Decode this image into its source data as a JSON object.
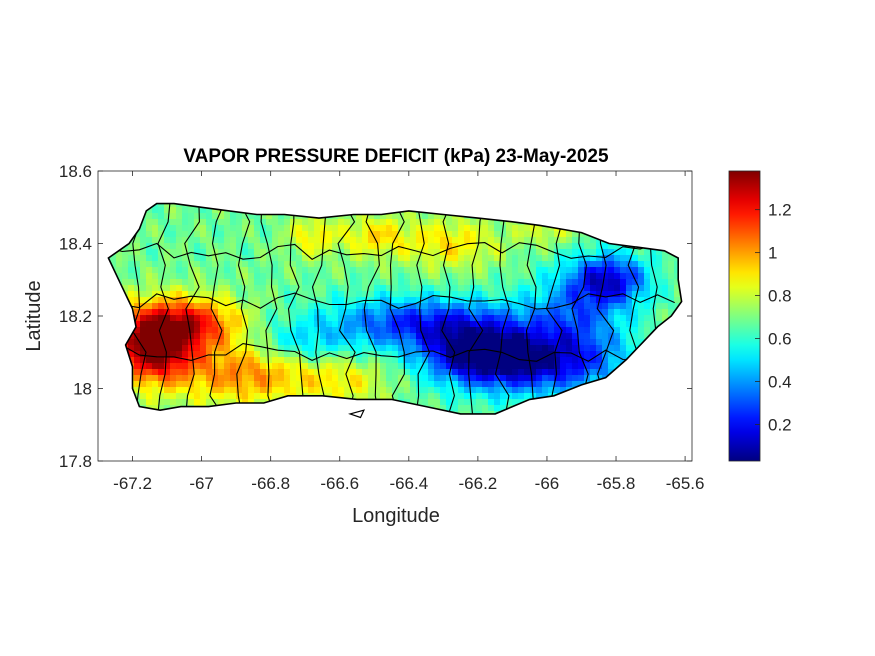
{
  "chart_data": {
    "type": "heatmap",
    "title": "VAPOR PRESSURE DEFICIT (kPa) 23-May-2025",
    "xlabel": "Longitude",
    "ylabel": "Latitude",
    "xlim": [
      -67.3,
      -65.58
    ],
    "ylim": [
      17.8,
      18.6
    ],
    "xticks": [
      -67.2,
      -67,
      -66.8,
      -66.6,
      -66.4,
      -66.2,
      -66,
      -65.8,
      -65.6
    ],
    "xtick_labels": [
      "-67.2",
      "-67",
      "-66.8",
      "-66.6",
      "-66.4",
      "-66.2",
      "-66",
      "-65.8",
      "-65.6"
    ],
    "yticks": [
      17.8,
      18,
      18.2,
      18.4,
      18.6
    ],
    "ytick_labels": [
      "17.8",
      "18",
      "18.2",
      "18.4",
      "18.6"
    ],
    "colorbar": {
      "colormap": "jet",
      "range": [
        0.03,
        1.38
      ],
      "ticks": [
        0.2,
        0.4,
        0.6,
        0.8,
        1,
        1.2
      ],
      "tick_labels": [
        "0.2",
        "0.4",
        "0.6",
        "0.8",
        "1",
        "1.2"
      ]
    },
    "grid": false,
    "outline": [
      [
        -67.27,
        18.36
      ],
      [
        -67.24,
        18.38
      ],
      [
        -67.21,
        18.4
      ],
      [
        -67.18,
        18.44
      ],
      [
        -67.16,
        18.49
      ],
      [
        -67.13,
        18.51
      ],
      [
        -67.08,
        18.51
      ],
      [
        -67.0,
        18.5
      ],
      [
        -66.92,
        18.49
      ],
      [
        -66.84,
        18.48
      ],
      [
        -66.76,
        18.48
      ],
      [
        -66.66,
        18.47
      ],
      [
        -66.56,
        18.48
      ],
      [
        -66.48,
        18.48
      ],
      [
        -66.4,
        18.49
      ],
      [
        -66.3,
        18.48
      ],
      [
        -66.2,
        18.47
      ],
      [
        -66.1,
        18.46
      ],
      [
        -66.02,
        18.45
      ],
      [
        -65.96,
        18.44
      ],
      [
        -65.9,
        18.43
      ],
      [
        -65.82,
        18.4
      ],
      [
        -65.74,
        18.39
      ],
      [
        -65.66,
        18.38
      ],
      [
        -65.62,
        18.36
      ],
      [
        -65.62,
        18.3
      ],
      [
        -65.61,
        18.24
      ],
      [
        -65.64,
        18.2
      ],
      [
        -65.68,
        18.17
      ],
      [
        -65.72,
        18.13
      ],
      [
        -65.77,
        18.08
      ],
      [
        -65.83,
        18.03
      ],
      [
        -65.9,
        18.01
      ],
      [
        -65.98,
        17.98
      ],
      [
        -66.05,
        17.97
      ],
      [
        -66.15,
        17.93
      ],
      [
        -66.25,
        17.93
      ],
      [
        -66.35,
        17.95
      ],
      [
        -66.45,
        17.97
      ],
      [
        -66.55,
        17.97
      ],
      [
        -66.65,
        17.98
      ],
      [
        -66.75,
        17.98
      ],
      [
        -66.82,
        17.96
      ],
      [
        -66.9,
        17.96
      ],
      [
        -66.98,
        17.95
      ],
      [
        -67.06,
        17.95
      ],
      [
        -67.12,
        17.94
      ],
      [
        -67.18,
        17.95
      ],
      [
        -67.2,
        18.0
      ],
      [
        -67.2,
        18.06
      ],
      [
        -67.22,
        18.12
      ],
      [
        -67.19,
        18.17
      ],
      [
        -67.2,
        18.22
      ],
      [
        -67.24,
        18.3
      ],
      [
        -67.27,
        18.36
      ]
    ],
    "islets": [
      [
        [
          -66.57,
          17.93
        ],
        [
          -66.53,
          17.94
        ],
        [
          -66.54,
          17.92
        ]
      ]
    ],
    "field": {
      "background": 0.68,
      "components": [
        {
          "lon": -67.14,
          "lat": 18.12,
          "value": 0.75,
          "sx": 0.08,
          "sy": 0.07
        },
        {
          "lon": -67.02,
          "lat": 18.18,
          "value": 0.45,
          "sx": 0.1,
          "sy": 0.05
        },
        {
          "lon": -66.88,
          "lat": 18.04,
          "value": 0.35,
          "sx": 0.14,
          "sy": 0.06
        },
        {
          "lon": -66.58,
          "lat": 18.02,
          "value": 0.18,
          "sx": 0.1,
          "sy": 0.05
        },
        {
          "lon": -66.68,
          "lat": 18.42,
          "value": 0.2,
          "sx": 0.05,
          "sy": 0.04
        },
        {
          "lon": -66.5,
          "lat": 18.42,
          "value": 0.22,
          "sx": 0.07,
          "sy": 0.04
        },
        {
          "lon": -66.28,
          "lat": 18.4,
          "value": 0.22,
          "sx": 0.1,
          "sy": 0.05
        },
        {
          "lon": -66.0,
          "lat": 18.44,
          "value": 0.15,
          "sx": 0.06,
          "sy": 0.03
        },
        {
          "lon": -66.35,
          "lat": 18.18,
          "value": -0.45,
          "sx": 0.2,
          "sy": 0.05
        },
        {
          "lon": -66.05,
          "lat": 18.07,
          "value": -0.55,
          "sx": 0.18,
          "sy": 0.06
        },
        {
          "lon": -66.2,
          "lat": 18.1,
          "value": -0.4,
          "sx": 0.1,
          "sy": 0.05
        },
        {
          "lon": -65.82,
          "lat": 18.3,
          "value": -0.5,
          "sx": 0.08,
          "sy": 0.05
        },
        {
          "lon": -65.92,
          "lat": 18.2,
          "value": -0.28,
          "sx": 0.1,
          "sy": 0.08
        },
        {
          "lon": -66.72,
          "lat": 18.12,
          "value": -0.18,
          "sx": 0.1,
          "sy": 0.04
        }
      ]
    }
  }
}
